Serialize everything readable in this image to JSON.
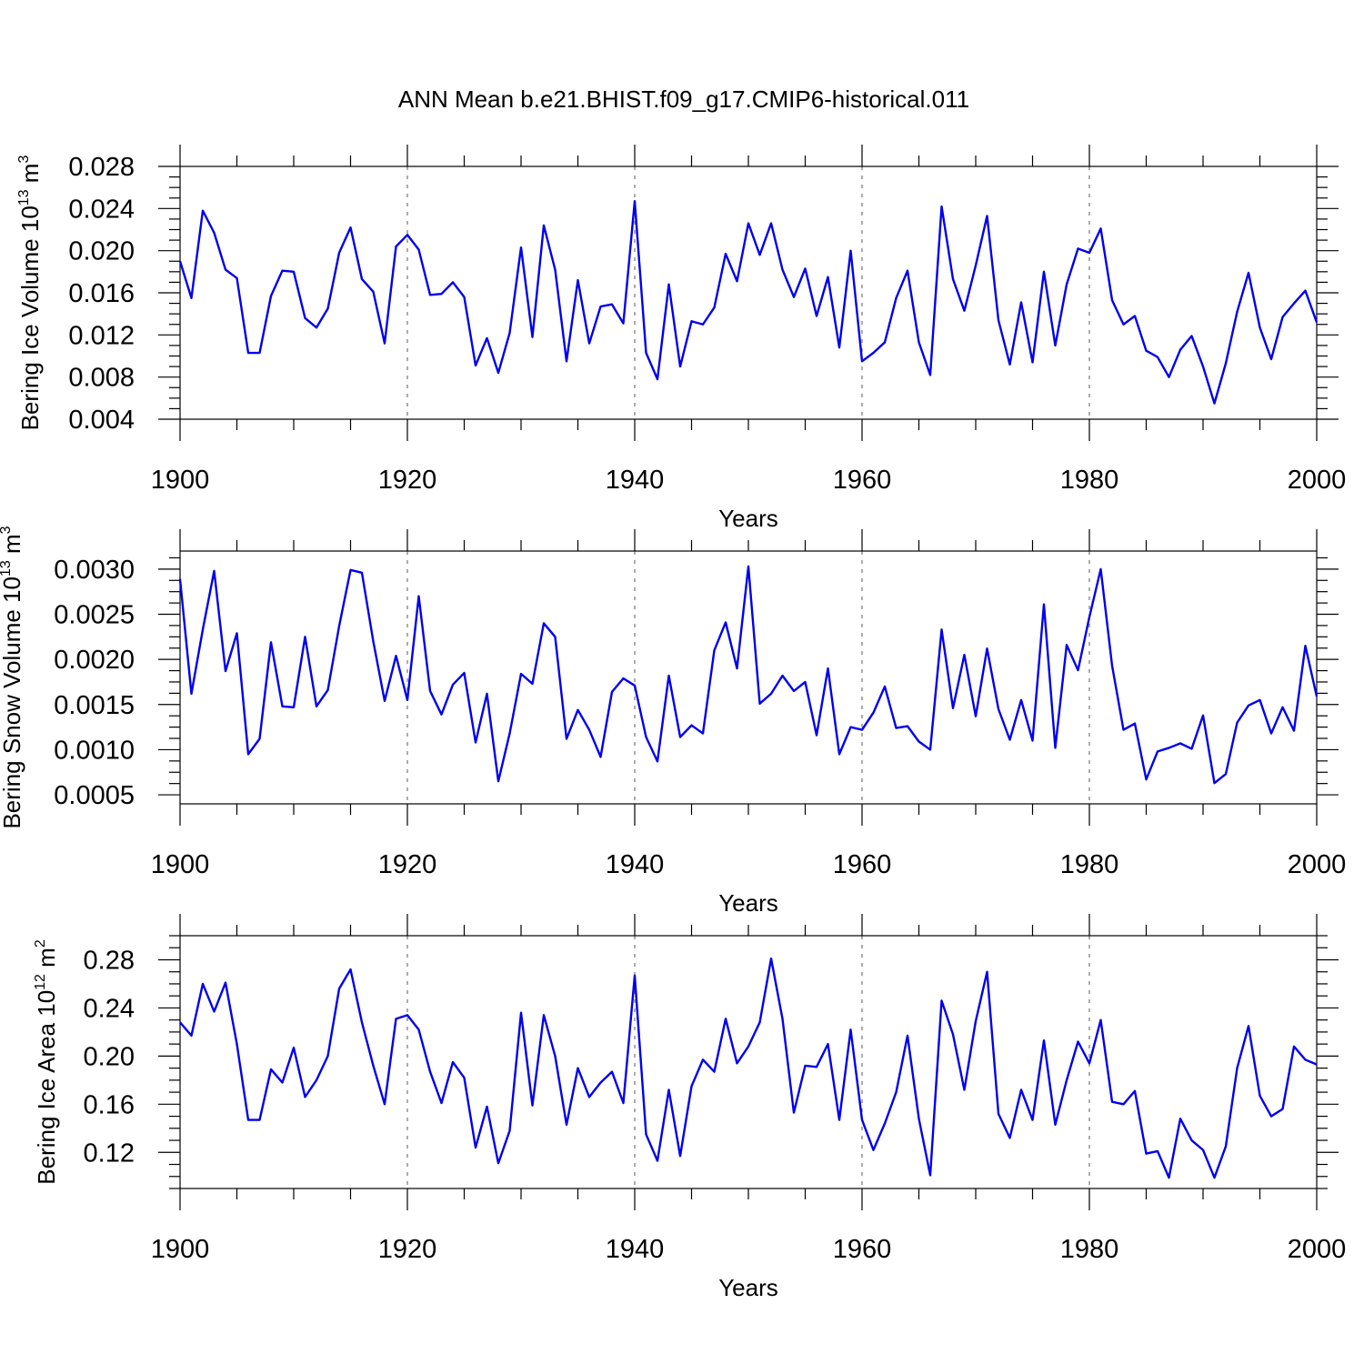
{
  "figure": {
    "title": "ANN Mean b.e21.BHIST.f09_g17.CMIP6-historical.011"
  },
  "chart_data": [
    {
      "type": "line",
      "name": "ice-volume",
      "ylabel": "Bering Ice Volume 10",
      "ylabel_exp": "13",
      "ylabel_unit": " m",
      "ylabel_unit_exp": "3",
      "xlabel": "Years",
      "xlim": [
        1900,
        2000
      ],
      "ylim": [
        0.004,
        0.028
      ],
      "yticks": [
        0.004,
        0.008,
        0.012,
        0.016,
        0.02,
        0.024,
        0.028
      ],
      "ytick_labels": [
        "0.004",
        "0.008",
        "0.012",
        "0.016",
        "0.020",
        "0.024",
        "0.028"
      ],
      "xticks": [
        1900,
        1920,
        1940,
        1960,
        1980,
        2000
      ],
      "xtick_labels": [
        "1900",
        "1920",
        "1940",
        "1960",
        "1980",
        "2000"
      ],
      "gridlines_x": [
        1920,
        1940,
        1960,
        1980
      ],
      "x_start": 1900,
      "series": [
        {
          "name": "Bering Ice Volume",
          "color": "#0000ee",
          "values": [
            0.019,
            0.0155,
            0.0238,
            0.0217,
            0.0182,
            0.0174,
            0.0103,
            0.0103,
            0.0157,
            0.0181,
            0.018,
            0.0136,
            0.0127,
            0.0145,
            0.0198,
            0.0222,
            0.0173,
            0.0161,
            0.0112,
            0.0204,
            0.0215,
            0.0201,
            0.0158,
            0.0159,
            0.017,
            0.0156,
            0.0091,
            0.0117,
            0.0084,
            0.0122,
            0.0203,
            0.0118,
            0.0224,
            0.0182,
            0.0095,
            0.0172,
            0.0112,
            0.0147,
            0.0149,
            0.0131,
            0.0247,
            0.0103,
            0.0078,
            0.0168,
            0.009,
            0.0133,
            0.013,
            0.0146,
            0.0197,
            0.0171,
            0.0226,
            0.0196,
            0.0226,
            0.0182,
            0.0156,
            0.0183,
            0.0138,
            0.0175,
            0.0108,
            0.02,
            0.0095,
            0.0103,
            0.0113,
            0.0155,
            0.0181,
            0.0113,
            0.0082,
            0.0242,
            0.0173,
            0.0143,
            0.0186,
            0.0233,
            0.0134,
            0.0092,
            0.0151,
            0.0094,
            0.018,
            0.011,
            0.0168,
            0.0202,
            0.0198,
            0.0221,
            0.0153,
            0.013,
            0.0138,
            0.0105,
            0.0099,
            0.008,
            0.0106,
            0.0119,
            0.009,
            0.0055,
            0.0093,
            0.0142,
            0.0179,
            0.0127,
            0.0097,
            0.0137,
            0.015,
            0.0162,
            0.0132
          ]
        }
      ]
    },
    {
      "type": "line",
      "name": "snow-volume",
      "ylabel": "Bering Snow Volume 10",
      "ylabel_exp": "13",
      "ylabel_unit": " m",
      "ylabel_unit_exp": "3",
      "xlabel": "Years",
      "xlim": [
        1900,
        2000
      ],
      "ylim": [
        0.0004,
        0.0032
      ],
      "yticks": [
        0.0005,
        0.001,
        0.0015,
        0.002,
        0.0025,
        0.003
      ],
      "ytick_labels": [
        "0.0005",
        "0.0010",
        "0.0015",
        "0.0020",
        "0.0025",
        "0.0030"
      ],
      "xticks": [
        1900,
        1920,
        1940,
        1960,
        1980,
        2000
      ],
      "xtick_labels": [
        "1900",
        "1920",
        "1940",
        "1960",
        "1980",
        "2000"
      ],
      "gridlines_x": [
        1920,
        1940,
        1960,
        1980
      ],
      "x_start": 1900,
      "series": [
        {
          "name": "Bering Snow Volume",
          "color": "#0000ee",
          "values": [
            0.00289,
            0.00162,
            0.00233,
            0.00298,
            0.00187,
            0.00229,
            0.00095,
            0.00112,
            0.00219,
            0.00148,
            0.00147,
            0.00225,
            0.00148,
            0.00166,
            0.00237,
            0.00299,
            0.00296,
            0.0022,
            0.00154,
            0.00204,
            0.00155,
            0.0027,
            0.00165,
            0.00139,
            0.00172,
            0.00185,
            0.00108,
            0.00162,
            0.00065,
            0.00118,
            0.00184,
            0.00173,
            0.0024,
            0.00225,
            0.00112,
            0.00144,
            0.00122,
            0.00092,
            0.00164,
            0.00179,
            0.00171,
            0.00114,
            0.00087,
            0.00182,
            0.00114,
            0.00127,
            0.00118,
            0.0021,
            0.00241,
            0.0019,
            0.00303,
            0.00151,
            0.00162,
            0.00182,
            0.00165,
            0.00175,
            0.00116,
            0.0019,
            0.00095,
            0.00125,
            0.00122,
            0.00141,
            0.0017,
            0.00124,
            0.00126,
            0.00109,
            0.001,
            0.00233,
            0.00146,
            0.00205,
            0.00137,
            0.00212,
            0.00145,
            0.00111,
            0.00155,
            0.0011,
            0.00261,
            0.00102,
            0.00216,
            0.00188,
            0.00247,
            0.003,
            0.00193,
            0.00122,
            0.00129,
            0.00067,
            0.00098,
            0.00102,
            0.00107,
            0.00101,
            0.00138,
            0.00063,
            0.00073,
            0.0013,
            0.00149,
            0.00155,
            0.00118,
            0.00147,
            0.00121,
            0.00215,
            0.00159
          ]
        }
      ]
    },
    {
      "type": "line",
      "name": "ice-area",
      "ylabel": "Bering Ice Area 10",
      "ylabel_exp": "12",
      "ylabel_unit": " m",
      "ylabel_unit_exp": "2",
      "xlabel": "Years",
      "xlim": [
        1900,
        2000
      ],
      "ylim": [
        0.09,
        0.3
      ],
      "yticks": [
        0.12,
        0.16,
        0.2,
        0.24,
        0.28
      ],
      "ytick_labels": [
        "0.12",
        "0.16",
        "0.20",
        "0.24",
        "0.28"
      ],
      "xticks": [
        1900,
        1920,
        1940,
        1960,
        1980,
        2000
      ],
      "xtick_labels": [
        "1900",
        "1920",
        "1940",
        "1960",
        "1980",
        "2000"
      ],
      "gridlines_x": [
        1920,
        1940,
        1960,
        1980
      ],
      "x_start": 1900,
      "series": [
        {
          "name": "Bering Ice Area",
          "color": "#0000ee",
          "values": [
            0.228,
            0.217,
            0.26,
            0.237,
            0.261,
            0.21,
            0.147,
            0.147,
            0.189,
            0.178,
            0.207,
            0.166,
            0.18,
            0.2,
            0.256,
            0.272,
            0.228,
            0.192,
            0.16,
            0.231,
            0.234,
            0.222,
            0.187,
            0.161,
            0.195,
            0.182,
            0.124,
            0.158,
            0.111,
            0.138,
            0.236,
            0.159,
            0.234,
            0.2,
            0.143,
            0.19,
            0.166,
            0.178,
            0.187,
            0.161,
            0.267,
            0.135,
            0.113,
            0.172,
            0.117,
            0.175,
            0.197,
            0.187,
            0.231,
            0.194,
            0.208,
            0.228,
            0.281,
            0.231,
            0.153,
            0.192,
            0.191,
            0.21,
            0.147,
            0.222,
            0.147,
            0.122,
            0.144,
            0.17,
            0.217,
            0.148,
            0.101,
            0.246,
            0.218,
            0.172,
            0.229,
            0.27,
            0.152,
            0.132,
            0.172,
            0.147,
            0.213,
            0.143,
            0.18,
            0.212,
            0.194,
            0.23,
            0.162,
            0.16,
            0.171,
            0.119,
            0.121,
            0.099,
            0.148,
            0.13,
            0.122,
            0.099,
            0.125,
            0.19,
            0.225,
            0.167,
            0.15,
            0.156,
            0.208,
            0.197,
            0.193
          ]
        }
      ]
    }
  ]
}
